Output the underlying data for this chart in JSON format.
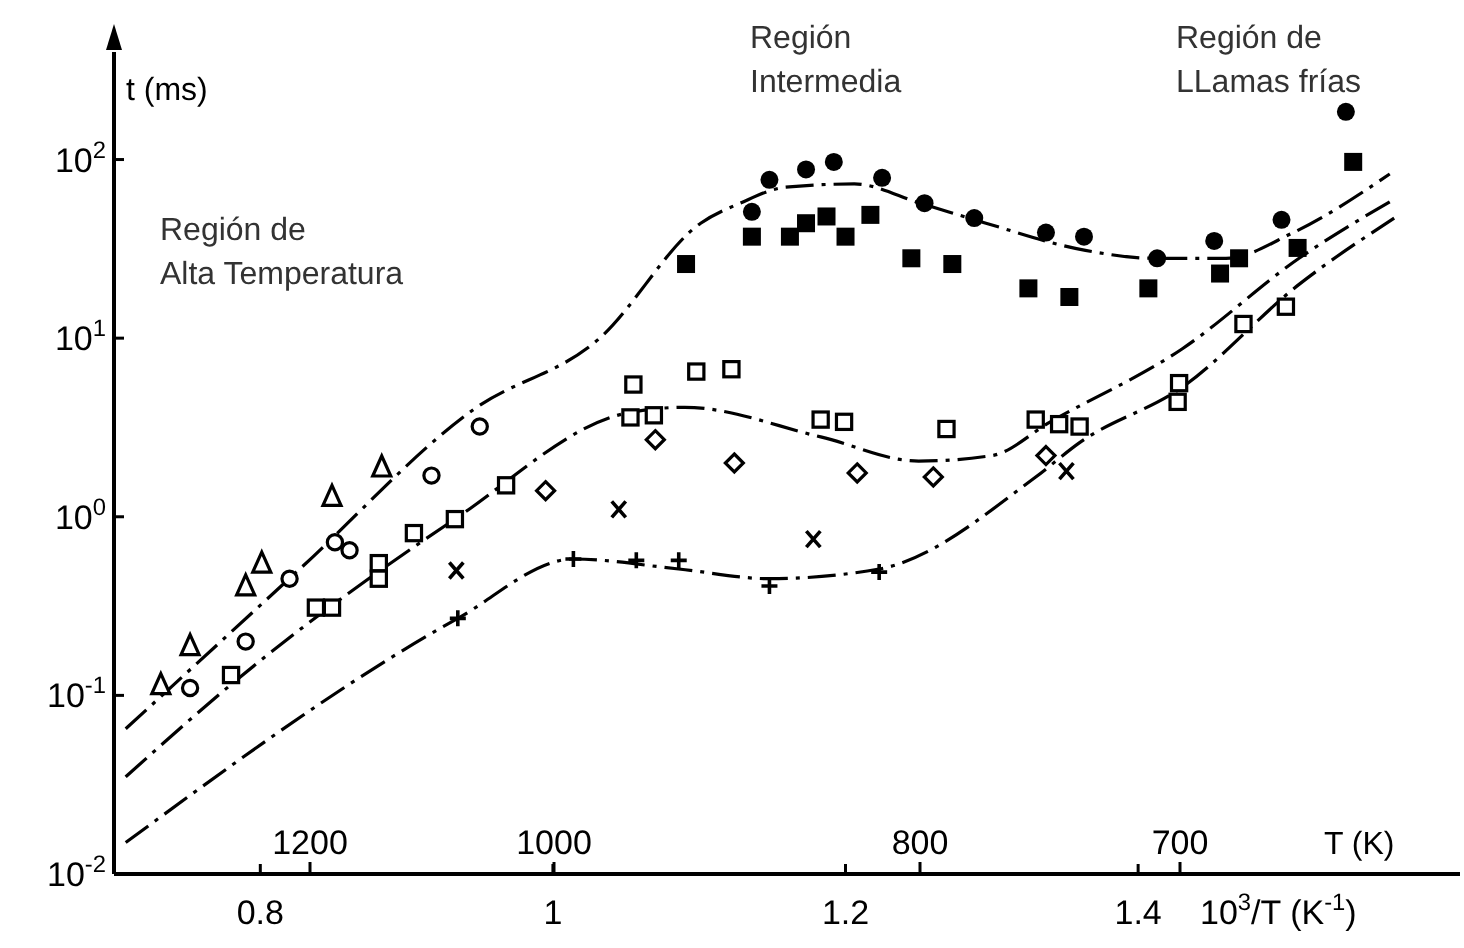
{
  "chart_data": {
    "type": "scatter",
    "log": "y",
    "ylabel": "t (ms)",
    "xlabel": "10$^{3}$/T (K$^{-1}$)",
    "xlim": [
      0.7,
      1.62
    ],
    "xticks": [
      0.8,
      1.0,
      1.2,
      1.4
    ],
    "ylim": [
      0.01,
      400
    ],
    "yticks": [
      {
        "value": 0.01,
        "label": "10$^{-2}$"
      },
      {
        "value": 0.1,
        "label": "10$^{-1}$"
      },
      {
        "value": 1,
        "label": "10$^{0}$"
      },
      {
        "value": 10,
        "label": "10$^{1}$"
      },
      {
        "value": 100,
        "label": "10$^{2}$"
      }
    ],
    "annotations": [
      "Región de\nAlta Temperatura",
      "Región\nIntermedia",
      "Región de\nLLamas frías",
      "T (K)",
      "1200",
      "1000",
      "800",
      "700"
    ],
    "series": [
      {
        "type": "line",
        "color": "#000000",
        "line_style": "dashed",
        "x": [
          0.708,
          0.827,
          0.946,
          1.032,
          1.101,
          1.128,
          1.159,
          1.206,
          1.251,
          1.296,
          1.364,
          1.411,
          1.46,
          1.506,
          1.572
        ],
        "values": [
          0.065,
          0.51,
          4.0,
          10,
          44,
          57,
          70,
          73,
          57,
          44,
          31,
          28,
          28,
          39,
          83
        ]
      },
      {
        "type": "line",
        "color": "#000000",
        "line_style": "dashed",
        "x": [
          0.708,
          0.78,
          0.933,
          1.05,
          1.09,
          1.183,
          1.25,
          1.3,
          1.34,
          1.43,
          1.51,
          1.575
        ],
        "values": [
          0.035,
          0.115,
          0.97,
          3.8,
          4.1,
          2.8,
          2.05,
          2.2,
          3.4,
          8.7,
          28,
          60
        ]
      },
      {
        "type": "line",
        "color": "#000000",
        "line_style": "dashed",
        "x": [
          0.708,
          0.935,
          1.014,
          1.086,
          1.148,
          1.223,
          1.33,
          1.36,
          1.43,
          1.51,
          1.575
        ],
        "values": [
          0.015,
          0.27,
          0.58,
          0.51,
          0.45,
          0.51,
          1.67,
          2.6,
          5.3,
          20,
          47
        ]
      },
      {
        "color": "#000000",
        "marker": "circle",
        "x": [
          1.136,
          1.148,
          1.173,
          1.192,
          1.225,
          1.254,
          1.288,
          1.337,
          1.363,
          1.413,
          1.452,
          1.498,
          1.542
        ],
        "values": [
          51,
          77,
          88,
          97,
          79,
          57,
          47,
          39,
          37,
          28,
          35,
          46,
          185
        ]
      },
      {
        "color": "#000000",
        "marker": "square",
        "x": [
          1.091,
          1.136,
          1.162,
          1.173,
          1.187,
          1.2,
          1.217,
          1.245,
          1.273,
          1.325,
          1.353,
          1.407,
          1.456,
          1.469,
          1.509,
          1.547
        ],
        "values": [
          26,
          37,
          37,
          44,
          48,
          37,
          49,
          28,
          26,
          19,
          17,
          19,
          23,
          28,
          32,
          97
        ]
      },
      {
        "color": "#000000",
        "marker": "square-open",
        "x": [
          0.78,
          0.838,
          0.849,
          0.881,
          0.881,
          0.905,
          0.933,
          0.968,
          1.053,
          1.055,
          1.069,
          1.098,
          1.122,
          1.183,
          1.199,
          1.269,
          1.33,
          1.346,
          1.36,
          1.427,
          1.428,
          1.472,
          1.501
        ],
        "values": [
          0.13,
          0.31,
          0.31,
          0.55,
          0.45,
          0.81,
          0.97,
          1.5,
          3.6,
          5.5,
          3.7,
          6.5,
          6.7,
          3.5,
          3.4,
          3.1,
          3.5,
          3.3,
          3.2,
          4.4,
          5.6,
          12,
          15
        ]
      },
      {
        "color": "#000000",
        "marker": "circle-open",
        "x": [
          0.752,
          0.79,
          0.82,
          0.851,
          0.861,
          0.917,
          0.95
        ],
        "values": [
          0.11,
          0.2,
          0.45,
          0.72,
          0.65,
          1.7,
          3.2
        ]
      },
      {
        "color": "#000000",
        "marker": "diamond-open",
        "x": [
          0.995,
          1.07,
          1.124,
          1.208,
          1.26,
          1.337
        ],
        "values": [
          1.4,
          2.7,
          2.0,
          1.76,
          1.67,
          2.2
        ]
      },
      {
        "color": "#000000",
        "marker": "triangle-open",
        "x": [
          0.732,
          0.752,
          0.79,
          0.801,
          0.849,
          0.883
        ],
        "values": [
          0.115,
          0.19,
          0.41,
          0.55,
          1.3,
          1.9
        ]
      },
      {
        "color": "#000000",
        "marker": "cross",
        "x": [
          0.934,
          1.045,
          1.178,
          1.351
        ],
        "values": [
          0.5,
          1.1,
          0.75,
          1.8
        ]
      },
      {
        "color": "#000000",
        "marker": "plus",
        "x": [
          0.935,
          1.014,
          1.057,
          1.086,
          1.148,
          1.223
        ],
        "values": [
          0.27,
          0.58,
          0.57,
          0.57,
          0.41,
          0.49
        ]
      }
    ]
  }
}
